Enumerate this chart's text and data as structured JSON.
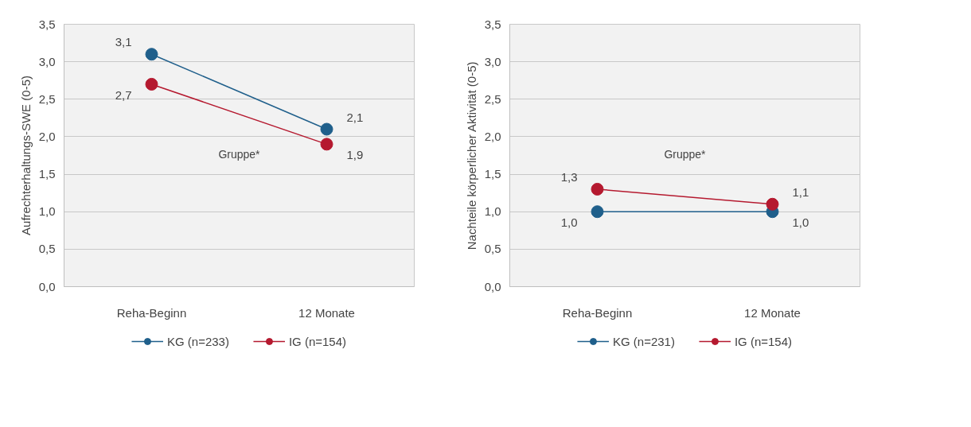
{
  "chart_data": [
    {
      "type": "line",
      "ylabel": "Aufrechterhaltungs-SWE (0-5)",
      "categories": [
        "Reha-Beginn",
        "12 Monate"
      ],
      "series": [
        {
          "name": "KG (n=233)",
          "color": "#1f5f8b",
          "values": [
            3.1,
            2.1
          ],
          "value_labels": [
            "3,1",
            "2,1"
          ]
        },
        {
          "name": "IG (n=154)",
          "color": "#b5192f",
          "values": [
            2.7,
            1.9
          ],
          "value_labels": [
            "2,7",
            "1,9"
          ]
        }
      ],
      "ylim": [
        0,
        3.5
      ],
      "yticks": [
        {
          "value": 0,
          "label": "0,0"
        },
        {
          "value": 0.5,
          "label": "0,5"
        },
        {
          "value": 1,
          "label": "1,0"
        },
        {
          "value": 1.5,
          "label": "1,5"
        },
        {
          "value": 2,
          "label": "2,0"
        },
        {
          "value": 2.5,
          "label": "2,5"
        },
        {
          "value": 3,
          "label": "3,0"
        },
        {
          "value": 3.5,
          "label": "3,5"
        }
      ],
      "grid": "y",
      "legend": "bottom",
      "marker": "circle",
      "line_style": "solid",
      "annotations": [
        "Gruppe*"
      ]
    },
    {
      "type": "line",
      "ylabel": "Nachteile körperlicher Aktivität (0-5)",
      "categories": [
        "Reha-Beginn",
        "12 Monate"
      ],
      "series": [
        {
          "name": "KG (n=231)",
          "color": "#1f5f8b",
          "values": [
            1.0,
            1.0
          ],
          "value_labels": [
            "1,0",
            "1,0"
          ]
        },
        {
          "name": "IG (n=154)",
          "color": "#b5192f",
          "values": [
            1.3,
            1.1
          ],
          "value_labels": [
            "1,3",
            "1,1"
          ]
        }
      ],
      "ylim": [
        0,
        3.5
      ],
      "yticks": [
        {
          "value": 0,
          "label": "0,0"
        },
        {
          "value": 0.5,
          "label": "0,5"
        },
        {
          "value": 1,
          "label": "1,0"
        },
        {
          "value": 1.5,
          "label": "1,5"
        },
        {
          "value": 2,
          "label": "2,0"
        },
        {
          "value": 2.5,
          "label": "2,5"
        },
        {
          "value": 3,
          "label": "3,0"
        },
        {
          "value": 3.5,
          "label": "3,5"
        }
      ],
      "grid": "y",
      "legend": "bottom",
      "marker": "circle",
      "line_style": "solid",
      "annotations": [
        "Gruppe*"
      ]
    }
  ]
}
